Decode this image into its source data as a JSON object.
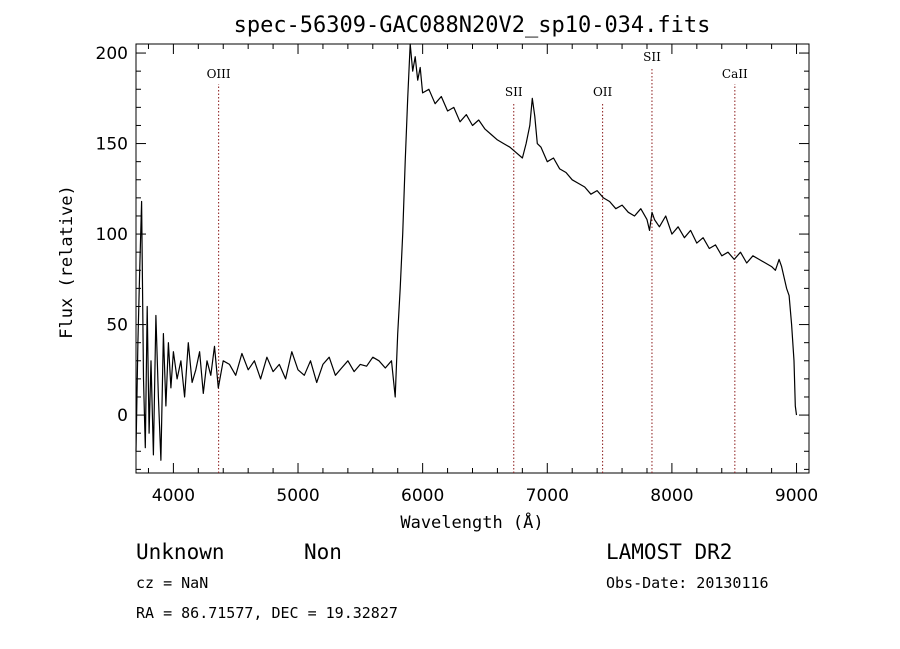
{
  "chart_data": {
    "type": "line",
    "title": "spec-56309-GAC088N20V2_sp10-034.fits",
    "xlabel": "Wavelength (Å)",
    "ylabel": "Flux (relative)",
    "xlim": [
      3700,
      9100
    ],
    "ylim": [
      -32,
      205
    ],
    "x_ticks": [
      4000,
      5000,
      6000,
      7000,
      8000,
      9000
    ],
    "y_ticks": [
      0,
      50,
      100,
      150,
      200
    ],
    "lines": [
      {
        "name": "OIII",
        "wavelength": 4363
      },
      {
        "name": "SII",
        "wavelength": 6731
      },
      {
        "name": "OII",
        "wavelength": 7444
      },
      {
        "name": "SII",
        "wavelength": 7840
      },
      {
        "name": "CaII",
        "wavelength": 8505
      }
    ],
    "series": [
      {
        "name": "flux",
        "color": "#000000",
        "x": [
          3700,
          3715,
          3730,
          3745,
          3760,
          3775,
          3790,
          3805,
          3820,
          3840,
          3860,
          3880,
          3900,
          3920,
          3940,
          3960,
          3980,
          4000,
          4030,
          4060,
          4090,
          4120,
          4150,
          4180,
          4210,
          4240,
          4270,
          4300,
          4330,
          4360,
          4400,
          4450,
          4500,
          4550,
          4600,
          4650,
          4700,
          4750,
          4800,
          4850,
          4900,
          4950,
          5000,
          5050,
          5100,
          5150,
          5200,
          5250,
          5300,
          5350,
          5400,
          5450,
          5500,
          5550,
          5600,
          5650,
          5700,
          5750,
          5780,
          5800,
          5820,
          5840,
          5860,
          5880,
          5900,
          5920,
          5940,
          5960,
          5980,
          6000,
          6050,
          6100,
          6150,
          6200,
          6250,
          6300,
          6350,
          6400,
          6450,
          6500,
          6550,
          6600,
          6650,
          6700,
          6750,
          6800,
          6830,
          6860,
          6880,
          6900,
          6920,
          6950,
          7000,
          7050,
          7100,
          7150,
          7200,
          7250,
          7300,
          7350,
          7400,
          7450,
          7500,
          7550,
          7600,
          7650,
          7700,
          7750,
          7800,
          7820,
          7840,
          7860,
          7900,
          7950,
          8000,
          8050,
          8100,
          8150,
          8200,
          8250,
          8300,
          8350,
          8400,
          8450,
          8500,
          8550,
          8600,
          8650,
          8700,
          8750,
          8800,
          8830,
          8860,
          8880,
          8900,
          8920,
          8940,
          8960,
          8980,
          8990,
          9000
        ],
        "y": [
          -20,
          40,
          80,
          118,
          20,
          -18,
          60,
          -10,
          30,
          -22,
          55,
          10,
          -25,
          45,
          5,
          40,
          15,
          35,
          20,
          30,
          10,
          40,
          18,
          25,
          35,
          12,
          30,
          22,
          38,
          15,
          30,
          28,
          22,
          34,
          25,
          30,
          20,
          32,
          24,
          28,
          20,
          35,
          25,
          22,
          30,
          18,
          28,
          32,
          22,
          26,
          30,
          24,
          28,
          27,
          32,
          30,
          26,
          30,
          10,
          45,
          70,
          100,
          140,
          175,
          205,
          190,
          198,
          185,
          192,
          178,
          180,
          172,
          176,
          168,
          170,
          162,
          166,
          160,
          163,
          158,
          155,
          152,
          150,
          148,
          145,
          142,
          150,
          160,
          175,
          165,
          150,
          148,
          140,
          142,
          136,
          134,
          130,
          128,
          126,
          122,
          124,
          120,
          118,
          114,
          116,
          112,
          110,
          114,
          108,
          102,
          112,
          108,
          104,
          110,
          100,
          104,
          98,
          102,
          95,
          98,
          92,
          94,
          88,
          90,
          86,
          90,
          84,
          88,
          86,
          84,
          82,
          80,
          86,
          82,
          76,
          70,
          66,
          50,
          30,
          5,
          0
        ]
      }
    ]
  },
  "info": {
    "object_class": "Unknown",
    "subclass": "Non",
    "survey": "LAMOST DR2",
    "redshift": "cz = NaN",
    "obs_date": "Obs-Date: 20130116",
    "coords": "RA =  86.71577, DEC =  19.32827"
  }
}
